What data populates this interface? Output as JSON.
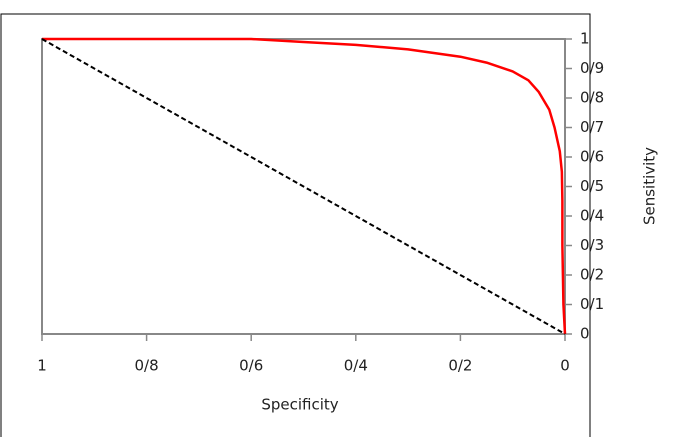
{
  "chart_data": {
    "type": "line",
    "xlabel": "Specificity",
    "ylabel": "Sensitivity",
    "xlim": [
      1,
      0
    ],
    "ylim": [
      0,
      1
    ],
    "xticks": [
      1,
      {
        "value": 0.8,
        "label": "0/8"
      },
      {
        "value": 0.6,
        "label": "0/6"
      },
      {
        "value": 0.4,
        "label": "0/4"
      },
      {
        "value": 0.2,
        "label": "0/2"
      },
      0
    ],
    "yticks": [
      0,
      {
        "value": 0.1,
        "label": "0/1"
      },
      {
        "value": 0.2,
        "label": "0/2"
      },
      {
        "value": 0.3,
        "label": "0/3"
      },
      {
        "value": 0.4,
        "label": "0/4"
      },
      {
        "value": 0.5,
        "label": "0/5"
      },
      {
        "value": 0.6,
        "label": "0/6"
      },
      {
        "value": 0.7,
        "label": "0/7"
      },
      {
        "value": 0.8,
        "label": "0/8"
      },
      {
        "value": 0.9,
        "label": "0/9"
      },
      1
    ],
    "yaxis_side": "right",
    "series": [
      {
        "color": "#ff0000",
        "dash": false,
        "x": [
          1,
          0.8,
          0.6,
          0.5,
          0.4,
          0.3,
          0.2,
          0.15,
          0.1,
          0.07,
          0.05,
          0.03,
          0.02,
          0.01,
          0.006,
          0.005,
          0.005,
          0.004,
          0.003,
          0
        ],
        "values": [
          1,
          1,
          1,
          0.99,
          0.98,
          0.965,
          0.94,
          0.92,
          0.89,
          0.86,
          0.82,
          0.76,
          0.7,
          0.62,
          0.55,
          0.45,
          0.3,
          0.2,
          0.1,
          0
        ]
      },
      {
        "color": "#000000",
        "dash": true,
        "x": [
          1,
          0
        ],
        "values": [
          1,
          0
        ]
      }
    ]
  }
}
